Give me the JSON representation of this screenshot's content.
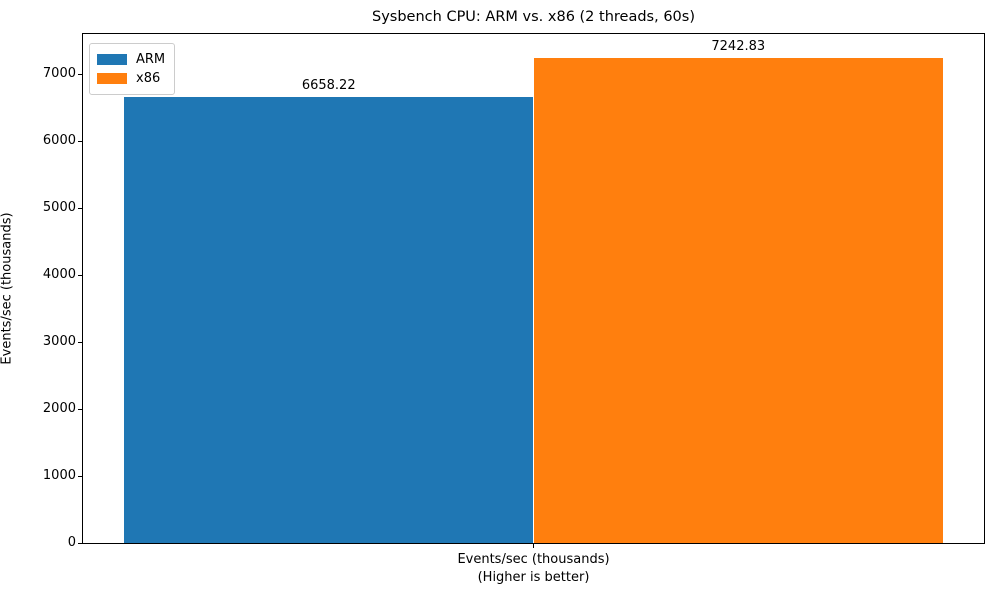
{
  "chart_data": {
    "type": "bar",
    "title": "Sysbench CPU: ARM vs. x86 (2 threads, 60s)",
    "ylabel": "Events/sec (thousands)",
    "xlabel": "",
    "categories": [
      "Events/sec (thousands)"
    ],
    "xtick_label_line1": "Events/sec (thousands)",
    "xtick_label_line2": "(Higher is better)",
    "series": [
      {
        "name": "ARM",
        "values": [
          6658.22
        ],
        "value_labels": [
          "6658.22"
        ],
        "color": "#1f77b4"
      },
      {
        "name": "x86",
        "values": [
          7242.83
        ],
        "value_labels": [
          "7242.83"
        ],
        "color": "#ff7f0e"
      }
    ],
    "ylim": [
      0,
      7605
    ],
    "yticks": [
      "0",
      "1000",
      "2000",
      "3000",
      "4000",
      "5000",
      "6000",
      "7000"
    ],
    "legend_position": "upper left",
    "grid": false,
    "background_color": "#ffffff",
    "spine_color": "#000000"
  }
}
